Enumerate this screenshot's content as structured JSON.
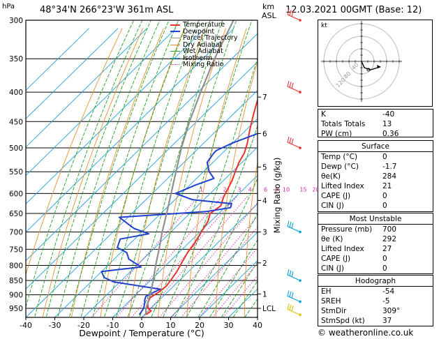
{
  "header": {
    "hpa_label": "hPa",
    "location": "48°34'N 266°23'W 361m ASL",
    "km_label": "km",
    "asl_label": "ASL",
    "datetime": "12.03.2021 00GMT (Base: 12)"
  },
  "chart_data": {
    "type": "line",
    "title": "48°34'N 266°23'W 361m ASL",
    "xlabel": "Dewpoint / Temperature (°C)",
    "ylabel": "hPa",
    "right_ylabel": "Mixing Ratio (g/kg)",
    "x_ticks": [
      -40,
      -30,
      -20,
      -10,
      0,
      10,
      20,
      30,
      40
    ],
    "xlim": [
      -40,
      40
    ],
    "pressure_ticks": [
      300,
      350,
      400,
      450,
      500,
      550,
      600,
      650,
      700,
      750,
      800,
      850,
      900,
      950
    ],
    "ylim": [
      300,
      985
    ],
    "km_ticks": [
      {
        "label": "7",
        "p": 408
      },
      {
        "label": "6",
        "p": 472
      },
      {
        "label": "5",
        "p": 540
      },
      {
        "label": "4",
        "p": 617
      },
      {
        "label": "3",
        "p": 700
      },
      {
        "label": "2",
        "p": 792
      },
      {
        "label": "1",
        "p": 897
      },
      {
        "label": "LCL",
        "p": 950
      }
    ],
    "mixing_ratio_labels": [
      "1",
      "2",
      "3",
      "4",
      "6",
      "8",
      "10",
      "15",
      "20",
      "25"
    ],
    "mixing_ratio_values": [
      1,
      2,
      3,
      4,
      6,
      8,
      10,
      15,
      20,
      25
    ],
    "legend": [
      "Temperature",
      "Dewpoint",
      "Parcel Trajectory",
      "Dry Adiabat",
      "Wet Adiabat",
      "Isotherm",
      "Mixing Ratio"
    ],
    "legend_placement": "top-left",
    "series": [
      {
        "name": "Temperature",
        "color": "#e8322a",
        "points": [
          [
            0.5,
            975
          ],
          [
            1,
            960
          ],
          [
            -1,
            950
          ],
          [
            -3,
            930
          ],
          [
            -4,
            910
          ],
          [
            -3,
            890
          ],
          [
            -2.5,
            870
          ],
          [
            -3,
            850
          ],
          [
            -4,
            820
          ],
          [
            -5.5,
            790
          ],
          [
            -7,
            760
          ],
          [
            -8,
            730
          ],
          [
            -9.5,
            700
          ],
          [
            -11,
            670
          ],
          [
            -13,
            650
          ],
          [
            -12,
            630
          ],
          [
            -14,
            610
          ],
          [
            -15.5,
            590
          ],
          [
            -17,
            570
          ],
          [
            -19,
            550
          ],
          [
            -21,
            530
          ],
          [
            -22.5,
            510
          ],
          [
            -25,
            490
          ],
          [
            -28,
            470
          ],
          [
            -31,
            450
          ],
          [
            -34,
            430
          ],
          [
            -37,
            410
          ],
          [
            -40,
            390
          ],
          [
            -43,
            370
          ],
          [
            -45.5,
            350
          ],
          [
            -49,
            330
          ],
          [
            -53,
            310
          ],
          [
            -55,
            300
          ]
        ]
      },
      {
        "name": "Dewpoint",
        "color": "#2040d0",
        "points": [
          [
            -1.7,
            975
          ],
          [
            -2.5,
            950
          ],
          [
            -4,
            930
          ],
          [
            -5,
            920
          ],
          [
            -6,
            905
          ],
          [
            -4,
            885
          ],
          [
            -3.5,
            880
          ],
          [
            -22,
            855
          ],
          [
            -27,
            840
          ],
          [
            -30,
            820
          ],
          [
            -18,
            805
          ],
          [
            -25,
            780
          ],
          [
            -28,
            760
          ],
          [
            -33,
            745
          ],
          [
            -35,
            720
          ],
          [
            -27,
            705
          ],
          [
            -34,
            690
          ],
          [
            -37,
            680
          ],
          [
            -43,
            660
          ],
          [
            -15,
            645
          ],
          [
            -8,
            635
          ],
          [
            -9,
            625
          ],
          [
            -24,
            615
          ],
          [
            -32,
            600
          ],
          [
            -28,
            580
          ],
          [
            -24,
            565
          ],
          [
            -28,
            550
          ],
          [
            -32,
            530
          ],
          [
            -33,
            510
          ],
          [
            -33,
            505
          ],
          [
            -30,
            490
          ],
          [
            -21,
            460
          ],
          [
            -22,
            450
          ],
          [
            -28,
            420
          ],
          [
            -33,
            390
          ],
          [
            -38,
            360
          ],
          [
            -43,
            330
          ],
          [
            -48,
            300
          ]
        ]
      },
      {
        "name": "Parcel Trajectory",
        "color": "#909090",
        "points": [
          [
            0.5,
            975
          ],
          [
            -1.7,
            950
          ],
          [
            -5,
            900
          ],
          [
            -9,
            850
          ],
          [
            -13.5,
            800
          ],
          [
            -18,
            750
          ],
          [
            -23,
            700
          ],
          [
            -28,
            650
          ],
          [
            -33.5,
            600
          ],
          [
            -39.5,
            550
          ],
          [
            -46,
            500
          ],
          [
            -52.5,
            450
          ],
          [
            -59,
            400
          ],
          [
            -66,
            350
          ],
          [
            -73,
            300
          ]
        ]
      }
    ]
  },
  "hodograph": {
    "unit_label": "kt",
    "ring_labels": [
      "40",
      "80",
      "120"
    ],
    "points": [
      [
        0,
        0
      ],
      [
        4,
        -9
      ],
      [
        13,
        -12
      ],
      [
        23,
        -9
      ]
    ]
  },
  "wind_barbs": [
    {
      "p": 300,
      "color": "#e83030"
    },
    {
      "p": 400,
      "color": "#e83030"
    },
    {
      "p": 500,
      "color": "#e83030"
    },
    {
      "p": 700,
      "color": "#00a0d0"
    },
    {
      "p": 850,
      "color": "#00a0d0"
    },
    {
      "p": 925,
      "color": "#00a0d0"
    },
    {
      "p": 975,
      "color": "#e0c000"
    }
  ],
  "indices": [
    {
      "label": "K",
      "value": "-40"
    },
    {
      "label": "Totals Totals",
      "value": "13"
    },
    {
      "label": "PW (cm)",
      "value": "0.36"
    }
  ],
  "surface": {
    "title": "Surface",
    "rows": [
      {
        "label": "Temp (°C)",
        "value": "0"
      },
      {
        "label": "Dewp (°C)",
        "value": "-1.7"
      },
      {
        "label": "θe(K)",
        "value": "284"
      },
      {
        "label": "Lifted Index",
        "value": "21"
      },
      {
        "label": "CAPE (J)",
        "value": "0"
      },
      {
        "label": "CIN (J)",
        "value": "0"
      }
    ]
  },
  "most_unstable": {
    "title": "Most Unstable",
    "rows": [
      {
        "label": "Pressure (mb)",
        "value": "700"
      },
      {
        "label": "θe (K)",
        "value": "292"
      },
      {
        "label": "Lifted Index",
        "value": "27"
      },
      {
        "label": "CAPE (J)",
        "value": "0"
      },
      {
        "label": "CIN (J)",
        "value": "0"
      }
    ]
  },
  "hodograph_table": {
    "title": "Hodograph",
    "rows": [
      {
        "label": "EH",
        "value": "-54"
      },
      {
        "label": "SREH",
        "value": "-5"
      },
      {
        "label": "StmDir",
        "value": "309°"
      },
      {
        "label": "StmSpd (kt)",
        "value": "37"
      }
    ]
  },
  "footer": {
    "copyright": "© weatheronline.co.uk"
  },
  "colors": {
    "temperature": "#e8322a",
    "dewpoint": "#2040d0",
    "parcel": "#909090",
    "dry_adiabat": "#e89030",
    "wet_adiabat": "#20a020",
    "isotherm": "#20a0e0",
    "mixing_ratio": "#e020a0"
  }
}
